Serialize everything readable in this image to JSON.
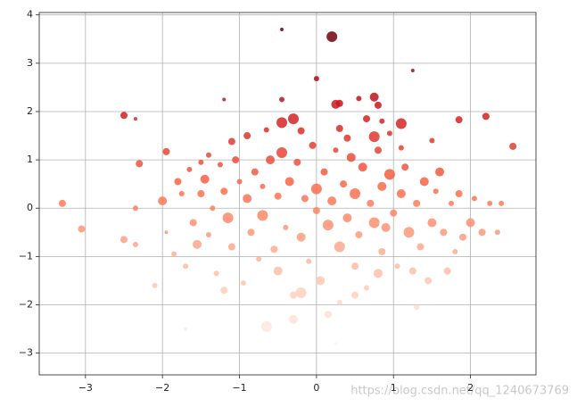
{
  "chart_data": {
    "type": "scatter",
    "cmap": "Reds",
    "alpha": 0.85,
    "grid": true,
    "xlim": [
      -3.6,
      2.85
    ],
    "ylim": [
      -3.45,
      4.05
    ],
    "xticks": [
      {
        "value": -3,
        "label": "−3"
      },
      {
        "value": -2,
        "label": "−2"
      },
      {
        "value": -1,
        "label": "−1"
      },
      0,
      1,
      2
    ],
    "yticks": [
      {
        "value": -3,
        "label": "−3"
      },
      {
        "value": -2,
        "label": "−2"
      },
      {
        "value": -1,
        "label": "−1"
      },
      0,
      1,
      2,
      3,
      4
    ],
    "x": [
      0.2,
      -0.45,
      1.25,
      0.0,
      -2.5,
      -2.35,
      2.2,
      1.85,
      2.55,
      -3.3,
      -3.05,
      -2.3,
      0.75,
      0.3,
      0.25,
      0.55,
      -0.45,
      -0.3,
      -0.45,
      1.1,
      0.65,
      0.85,
      0.95,
      0.75,
      -1.2,
      0.8,
      1.5,
      -1.95,
      -1.4,
      -1.1,
      -2.5,
      -2.35,
      -2.35,
      -2.0,
      -1.95,
      -1.85,
      -1.8,
      -1.75,
      -1.7,
      -1.65,
      -1.6,
      -1.55,
      -1.5,
      -1.45,
      -1.4,
      -1.35,
      -1.3,
      -1.25,
      -1.2,
      -1.15,
      -1.1,
      -1.05,
      -1.0,
      -0.95,
      -0.9,
      -0.85,
      -0.8,
      -0.75,
      -0.7,
      -0.7,
      -0.65,
      -0.6,
      -0.55,
      -0.5,
      -0.5,
      -0.45,
      -0.4,
      -0.35,
      -0.3,
      -0.3,
      -0.25,
      -0.2,
      -0.15,
      -0.1,
      -0.05,
      0.0,
      0.0,
      0.05,
      0.1,
      0.15,
      0.15,
      0.2,
      0.25,
      0.3,
      0.3,
      0.35,
      0.4,
      0.45,
      0.5,
      0.5,
      0.55,
      0.6,
      0.65,
      0.7,
      0.75,
      0.8,
      0.85,
      0.85,
      0.9,
      0.95,
      1.0,
      1.05,
      1.1,
      1.15,
      1.2,
      1.25,
      1.3,
      1.35,
      1.4,
      1.45,
      1.5,
      1.55,
      1.6,
      1.65,
      1.7,
      1.75,
      1.8,
      1.85,
      1.9,
      2.0,
      2.05,
      2.15,
      2.25,
      2.35,
      2.4,
      1.3,
      -0.2,
      0.5,
      -1.2,
      0.8,
      -2.1,
      -1.7,
      0.25,
      0.3,
      -0.65,
      -0.2,
      -0.9,
      1.1,
      0.4,
      -1.5
    ],
    "values": [
      3.55,
      3.7,
      2.85,
      2.68,
      1.92,
      1.85,
      1.9,
      1.83,
      1.28,
      0.1,
      -0.43,
      0.92,
      2.3,
      2.17,
      2.15,
      2.27,
      2.25,
      1.85,
      1.77,
      1.75,
      1.85,
      1.8,
      1.55,
      1.48,
      2.25,
      2.13,
      1.4,
      1.17,
      1.1,
      1.38,
      -0.65,
      -0.75,
      0.0,
      0.15,
      -0.5,
      -0.95,
      0.55,
      0.3,
      -1.2,
      0.8,
      -0.3,
      -0.75,
      0.3,
      0.6,
      -0.55,
      0.0,
      -1.35,
      0.9,
      0.35,
      -0.2,
      -0.8,
      1.0,
      0.55,
      -1.55,
      0.2,
      -0.5,
      0.75,
      -1.05,
      0.45,
      -0.15,
      -2.45,
      1.0,
      -0.85,
      0.25,
      -1.3,
      1.15,
      -0.4,
      0.55,
      -2.3,
      -1.8,
      0.95,
      -0.6,
      0.2,
      -1.1,
      1.3,
      0.4,
      -0.05,
      -1.5,
      0.75,
      -0.35,
      -2.2,
      0.15,
      1.2,
      -0.8,
      -1.95,
      0.5,
      -0.2,
      1.05,
      -1.2,
      0.3,
      -0.55,
      0.85,
      -1.65,
      0.1,
      -0.3,
      1.2,
      0.45,
      -0.9,
      -0.4,
      0.7,
      -0.1,
      -1.2,
      0.3,
      0.85,
      -0.5,
      -1.3,
      0.1,
      -0.8,
      0.55,
      -1.5,
      -0.3,
      0.35,
      0.75,
      -0.5,
      -1.3,
      0.1,
      -0.9,
      0.3,
      -0.6,
      -0.3,
      0.2,
      -0.5,
      0.1,
      -0.5,
      0.1,
      -2.05,
      -1.75,
      -1.8,
      -1.7,
      -1.35,
      -1.6,
      -2.5,
      -2.8,
      1.65,
      1.62,
      1.6,
      1.5,
      1.25,
      1.45,
      0.95
    ],
    "sizes": [
      6,
      2,
      2,
      3,
      4,
      2,
      4,
      4,
      4,
      4,
      4,
      4,
      5,
      4,
      5,
      3,
      3,
      6,
      6,
      6,
      4,
      3,
      3,
      6,
      2,
      4,
      3,
      4,
      3,
      4,
      4,
      3,
      3,
      5,
      2,
      3,
      4,
      3,
      3,
      3,
      4,
      5,
      4,
      5,
      3,
      3,
      3,
      3,
      4,
      6,
      4,
      4,
      3,
      3,
      5,
      4,
      4,
      3,
      3,
      6,
      6,
      5,
      4,
      4,
      5,
      6,
      3,
      5,
      5,
      4,
      4,
      5,
      4,
      3,
      4,
      6,
      4,
      5,
      4,
      6,
      4,
      5,
      3,
      6,
      3,
      4,
      5,
      5,
      4,
      6,
      4,
      5,
      3,
      4,
      6,
      4,
      5,
      4,
      5,
      6,
      4,
      3,
      5,
      4,
      6,
      4,
      4,
      4,
      5,
      4,
      5,
      3,
      5,
      4,
      4,
      3,
      3,
      4,
      4,
      5,
      3,
      4,
      3,
      3,
      3,
      3,
      6,
      4,
      4,
      5,
      3,
      2,
      2,
      4,
      3,
      4,
      4,
      3,
      4,
      3
    ]
  },
  "watermark": "https://blog.csdn.net/qq_1240673769"
}
